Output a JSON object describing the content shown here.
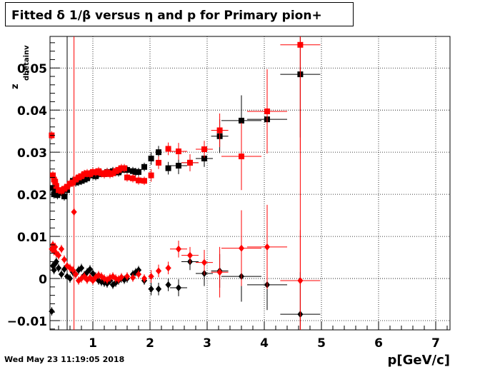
{
  "title": "Fitted δ 1/β versus η and p for Primary pion+",
  "datestamp": "Wed May 23 11:19:05 2018",
  "colors": {
    "series1": "#000000",
    "series2": "#ff0000",
    "frame": "#000000",
    "grid": "#000000"
  },
  "chart_data": {
    "type": "scatter",
    "title": "Fitted δ 1/β versus η and p for Primary pion+",
    "xlabel": "p[GeV/c]",
    "ylabel": "z",
    "ylabel_sub": "dbetainv",
    "xlim": [
      0.25,
      7.25
    ],
    "ylim": [
      -0.0122,
      0.0575
    ],
    "grid": true,
    "x_ticks": [
      1,
      2,
      3,
      4,
      5,
      6,
      7
    ],
    "x_tick_labels": [
      "1",
      "2",
      "3",
      "4",
      "5",
      "6",
      "7"
    ],
    "y_ticks": [
      -0.01,
      0,
      0.01,
      0.02,
      0.03,
      0.04,
      0.05
    ],
    "y_tick_labels": [
      "−0.01",
      "0",
      "0.01",
      "0.02",
      "0.03",
      "0.04",
      "0.05"
    ],
    "vertical_lines": [
      {
        "x": 0.55,
        "color": "#000000"
      },
      {
        "x": 0.67,
        "color": "#ff0000"
      },
      {
        "x": 4.63,
        "color": "#ff0000"
      }
    ],
    "series": [
      {
        "color": "#000000",
        "marker": "square",
        "points": [
          [
            0.3,
            0.0215,
            0.001
          ],
          [
            0.32,
            0.02,
            0.001
          ],
          [
            0.34,
            0.0205,
            0.001
          ],
          [
            0.36,
            0.021,
            0.001
          ],
          [
            0.38,
            0.0198,
            0.001
          ],
          [
            0.42,
            0.0205,
            0.001
          ],
          [
            0.46,
            0.0203,
            0.001
          ],
          [
            0.5,
            0.0195,
            0.001
          ],
          [
            0.55,
            0.021,
            0.001
          ],
          [
            0.6,
            0.0225,
            0.001
          ],
          [
            0.65,
            0.0232,
            0.001
          ],
          [
            0.7,
            0.0228,
            0.001
          ],
          [
            0.75,
            0.023,
            0.001
          ],
          [
            0.8,
            0.0232,
            0.001
          ],
          [
            0.85,
            0.0235,
            0.001
          ],
          [
            0.9,
            0.0238,
            0.001
          ],
          [
            0.95,
            0.0245,
            0.001
          ],
          [
            1.0,
            0.0245,
            0.001
          ],
          [
            1.05,
            0.0243,
            0.001
          ],
          [
            1.1,
            0.0248,
            0.001
          ],
          [
            1.15,
            0.025,
            0.001
          ],
          [
            1.2,
            0.0248,
            0.001
          ],
          [
            1.25,
            0.0253,
            0.001
          ],
          [
            1.3,
            0.025,
            0.001
          ],
          [
            1.35,
            0.0255,
            0.001
          ],
          [
            1.4,
            0.0253,
            0.001
          ],
          [
            1.45,
            0.0252,
            0.001
          ],
          [
            1.5,
            0.0258,
            0.001
          ],
          [
            1.55,
            0.026,
            0.001
          ],
          [
            1.6,
            0.0258,
            0.001
          ],
          [
            1.7,
            0.0255,
            0.001
          ],
          [
            1.75,
            0.0253,
            0.001
          ],
          [
            1.8,
            0.0253,
            0.001
          ],
          [
            1.9,
            0.0265,
            0.001
          ],
          [
            2.02,
            0.0285,
            0.0015
          ],
          [
            2.15,
            0.03,
            0.0015
          ],
          [
            2.32,
            0.0262,
            0.0015
          ],
          [
            2.5,
            0.0268,
            0.002
          ],
          [
            2.7,
            0.0275,
            0.002
          ],
          [
            2.95,
            0.0285,
            0.002
          ],
          [
            3.22,
            0.0338,
            0.004
          ],
          [
            3.6,
            0.0375,
            0.006
          ],
          [
            4.05,
            0.0378,
            0.008
          ],
          [
            4.63,
            0.0485,
            0.015
          ]
        ]
      },
      {
        "color": "#ff0000",
        "marker": "square",
        "points": [
          [
            0.28,
            0.034,
            0.001
          ],
          [
            0.3,
            0.0245,
            0.001
          ],
          [
            0.32,
            0.0235,
            0.001
          ],
          [
            0.34,
            0.023,
            0.001
          ],
          [
            0.36,
            0.022,
            0.001
          ],
          [
            0.4,
            0.021,
            0.001
          ],
          [
            0.45,
            0.0208,
            0.001
          ],
          [
            0.5,
            0.0213,
            0.001
          ],
          [
            0.55,
            0.0218,
            0.001
          ],
          [
            0.6,
            0.0225,
            0.001
          ],
          [
            0.65,
            0.0228,
            0.001
          ],
          [
            0.7,
            0.0235,
            0.001
          ],
          [
            0.75,
            0.024,
            0.001
          ],
          [
            0.8,
            0.0243,
            0.001
          ],
          [
            0.85,
            0.0248,
            0.001
          ],
          [
            0.9,
            0.025,
            0.001
          ],
          [
            0.95,
            0.0248,
            0.001
          ],
          [
            1.0,
            0.0253,
            0.001
          ],
          [
            1.05,
            0.0252,
            0.001
          ],
          [
            1.1,
            0.0255,
            0.001
          ],
          [
            1.15,
            0.025,
            0.001
          ],
          [
            1.2,
            0.0248,
            0.001
          ],
          [
            1.25,
            0.0252,
            0.001
          ],
          [
            1.3,
            0.0248,
            0.001
          ],
          [
            1.35,
            0.025,
            0.001
          ],
          [
            1.4,
            0.0255,
            0.001
          ],
          [
            1.45,
            0.0258,
            0.001
          ],
          [
            1.5,
            0.0262,
            0.001
          ],
          [
            1.55,
            0.0262,
            0.001
          ],
          [
            1.6,
            0.024,
            0.001
          ],
          [
            1.7,
            0.0238,
            0.001
          ],
          [
            1.8,
            0.0233,
            0.001
          ],
          [
            1.9,
            0.0232,
            0.001
          ],
          [
            2.02,
            0.0245,
            0.0015
          ],
          [
            2.15,
            0.0275,
            0.0015
          ],
          [
            2.32,
            0.0308,
            0.0015
          ],
          [
            2.5,
            0.0302,
            0.002
          ],
          [
            2.7,
            0.0275,
            0.002
          ],
          [
            2.95,
            0.0307,
            0.002
          ],
          [
            3.22,
            0.0352,
            0.004
          ],
          [
            3.6,
            0.029,
            0.008
          ],
          [
            4.05,
            0.0397,
            0.01
          ],
          [
            4.63,
            0.0555,
            0.025
          ]
        ]
      },
      {
        "color": "#000000",
        "marker": "diamond",
        "points": [
          [
            0.28,
            -0.0078,
            0.001
          ],
          [
            0.3,
            0.003,
            0.001
          ],
          [
            0.32,
            0.002,
            0.001
          ],
          [
            0.34,
            0.0035,
            0.001
          ],
          [
            0.36,
            0.004,
            0.001
          ],
          [
            0.4,
            0.0025,
            0.001
          ],
          [
            0.45,
            0.001,
            0.001
          ],
          [
            0.5,
            0.0022,
            0.001
          ],
          [
            0.55,
            0.0005,
            0.001
          ],
          [
            0.6,
            0.0,
            0.001
          ],
          [
            0.65,
            0.0015,
            0.001
          ],
          [
            0.7,
            0.001,
            0.001
          ],
          [
            0.75,
            0.002,
            0.001
          ],
          [
            0.8,
            0.0025,
            0.001
          ],
          [
            0.85,
            0.0008,
            0.001
          ],
          [
            0.9,
            0.0015,
            0.001
          ],
          [
            0.95,
            0.0022,
            0.001
          ],
          [
            1.0,
            0.0012,
            0.001
          ],
          [
            1.05,
            0.0005,
            0.001
          ],
          [
            1.1,
            -0.0005,
            0.001
          ],
          [
            1.15,
            -0.0008,
            0.001
          ],
          [
            1.2,
            -0.001,
            0.001
          ],
          [
            1.25,
            -0.0012,
            0.001
          ],
          [
            1.3,
            -0.0005,
            0.001
          ],
          [
            1.35,
            -0.0015,
            0.001
          ],
          [
            1.4,
            -0.001,
            0.001
          ],
          [
            1.45,
            -0.0005,
            0.001
          ],
          [
            1.5,
            0.0,
            0.001
          ],
          [
            1.55,
            -0.0003,
            0.001
          ],
          [
            1.6,
            0.0,
            0.001
          ],
          [
            1.7,
            0.001,
            0.001
          ],
          [
            1.75,
            0.0015,
            0.001
          ],
          [
            1.8,
            0.002,
            0.001
          ],
          [
            1.9,
            -0.0005,
            0.001
          ],
          [
            2.02,
            -0.0025,
            0.0015
          ],
          [
            2.15,
            -0.0025,
            0.0015
          ],
          [
            2.32,
            -0.0015,
            0.0015
          ],
          [
            2.5,
            -0.0022,
            0.002
          ],
          [
            2.7,
            0.004,
            0.002
          ],
          [
            2.95,
            0.0012,
            0.003
          ],
          [
            3.22,
            0.0018,
            0.004
          ],
          [
            3.6,
            0.0005,
            0.006
          ],
          [
            4.05,
            -0.0015,
            0.006
          ],
          [
            4.63,
            -0.0085,
            0.01
          ]
        ]
      },
      {
        "color": "#ff0000",
        "marker": "diamond",
        "points": [
          [
            0.28,
            0.007,
            0.001
          ],
          [
            0.3,
            0.008,
            0.001
          ],
          [
            0.32,
            0.0065,
            0.001
          ],
          [
            0.34,
            0.0075,
            0.001
          ],
          [
            0.36,
            0.006,
            0.001
          ],
          [
            0.4,
            0.0055,
            0.001
          ],
          [
            0.45,
            0.007,
            0.001
          ],
          [
            0.5,
            0.0045,
            0.001
          ],
          [
            0.55,
            0.003,
            0.001
          ],
          [
            0.6,
            0.0025,
            0.001
          ],
          [
            0.65,
            0.002,
            0.001
          ],
          [
            0.67,
            0.0158,
            0.001
          ],
          [
            0.7,
            0.001,
            0.001
          ],
          [
            0.75,
            -0.0005,
            0.001
          ],
          [
            0.8,
            0.0,
            0.001
          ],
          [
            0.85,
            0.0005,
            0.001
          ],
          [
            0.9,
            -0.0003,
            0.001
          ],
          [
            0.95,
            0.0002,
            0.001
          ],
          [
            1.0,
            -0.0005,
            0.001
          ],
          [
            1.05,
            0.0003,
            0.001
          ],
          [
            1.1,
            0.0008,
            0.001
          ],
          [
            1.15,
            0.0005,
            0.001
          ],
          [
            1.2,
            0.0,
            0.001
          ],
          [
            1.25,
            -0.0003,
            0.001
          ],
          [
            1.3,
            0.0002,
            0.001
          ],
          [
            1.35,
            0.0005,
            0.001
          ],
          [
            1.4,
            0.0,
            0.001
          ],
          [
            1.45,
            -0.0002,
            0.001
          ],
          [
            1.5,
            0.0003,
            0.001
          ],
          [
            1.6,
            0.0005,
            0.001
          ],
          [
            1.7,
            0.0002,
            0.001
          ],
          [
            1.8,
            0.001,
            0.001
          ],
          [
            1.9,
            0.0,
            0.001
          ],
          [
            2.02,
            0.0005,
            0.0015
          ],
          [
            2.15,
            0.0018,
            0.0015
          ],
          [
            2.32,
            0.0025,
            0.0015
          ],
          [
            2.5,
            0.007,
            0.002
          ],
          [
            2.7,
            0.0055,
            0.002
          ],
          [
            2.95,
            0.0038,
            0.003
          ],
          [
            3.22,
            0.0015,
            0.006
          ],
          [
            3.6,
            0.0072,
            0.009
          ],
          [
            4.05,
            0.0075,
            0.01
          ],
          [
            4.63,
            -0.0005,
            0.012
          ]
        ]
      }
    ]
  }
}
